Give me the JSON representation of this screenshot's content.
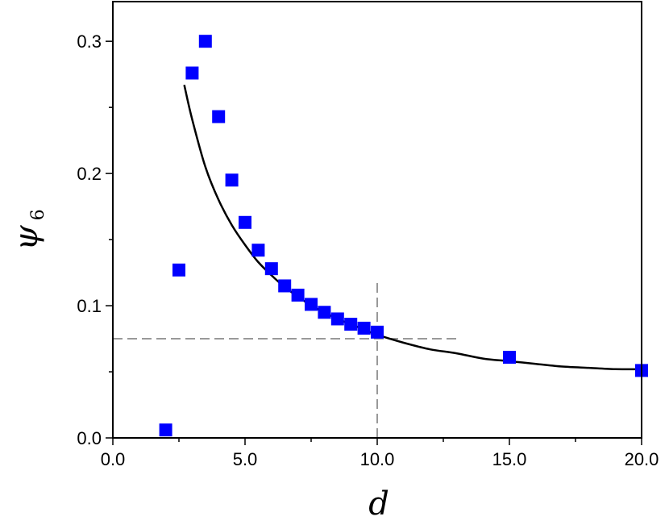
{
  "chart_data": {
    "type": "scatter",
    "xlabel": "d",
    "ylabel": "ψ",
    "ylabel_subscript": "6",
    "xlim": [
      0,
      20
    ],
    "ylim": [
      0,
      0.33
    ],
    "x_ticks": [
      0,
      5,
      10,
      15,
      20
    ],
    "x_tick_labels": [
      "0.0",
      "5.0",
      "10.0",
      "15.0",
      "20.0"
    ],
    "x_minor_ticks": [
      2.5,
      7.5,
      12.5,
      17.5
    ],
    "y_ticks": [
      0,
      0.1,
      0.2,
      0.3
    ],
    "y_tick_labels": [
      "0.0",
      "0.1",
      "0.2",
      "0.3"
    ],
    "y_minor_ticks": [
      0.05,
      0.15,
      0.25
    ],
    "grid": false,
    "series": [
      {
        "marker": "square",
        "color": "#0000ff",
        "points": [
          {
            "x": 2.0,
            "y": 0.006
          },
          {
            "x": 2.5,
            "y": 0.127
          },
          {
            "x": 3.0,
            "y": 0.276
          },
          {
            "x": 3.5,
            "y": 0.3
          },
          {
            "x": 4.0,
            "y": 0.243
          },
          {
            "x": 4.5,
            "y": 0.195
          },
          {
            "x": 5.0,
            "y": 0.163
          },
          {
            "x": 5.5,
            "y": 0.142
          },
          {
            "x": 6.0,
            "y": 0.128
          },
          {
            "x": 6.5,
            "y": 0.115
          },
          {
            "x": 7.0,
            "y": 0.108
          },
          {
            "x": 7.5,
            "y": 0.101
          },
          {
            "x": 8.0,
            "y": 0.095
          },
          {
            "x": 8.5,
            "y": 0.09
          },
          {
            "x": 9.0,
            "y": 0.086
          },
          {
            "x": 9.5,
            "y": 0.083
          },
          {
            "x": 10.0,
            "y": 0.08
          },
          {
            "x": 15.0,
            "y": 0.061
          },
          {
            "x": 20.0,
            "y": 0.051
          }
        ]
      },
      {
        "type": "line",
        "style": "solid",
        "color": "#000000",
        "points": [
          {
            "x": 2.7,
            "y": 0.267
          },
          {
            "x": 3.0,
            "y": 0.241
          },
          {
            "x": 3.5,
            "y": 0.205
          },
          {
            "x": 4.0,
            "y": 0.18
          },
          {
            "x": 4.5,
            "y": 0.161
          },
          {
            "x": 5.0,
            "y": 0.146
          },
          {
            "x": 5.5,
            "y": 0.133
          },
          {
            "x": 6.0,
            "y": 0.123
          },
          {
            "x": 6.5,
            "y": 0.114
          },
          {
            "x": 7.0,
            "y": 0.107
          },
          {
            "x": 7.5,
            "y": 0.1
          },
          {
            "x": 8.0,
            "y": 0.095
          },
          {
            "x": 8.5,
            "y": 0.09
          },
          {
            "x": 9.0,
            "y": 0.086
          },
          {
            "x": 9.5,
            "y": 0.082
          },
          {
            "x": 10.0,
            "y": 0.078
          },
          {
            "x": 11.0,
            "y": 0.072
          },
          {
            "x": 12.0,
            "y": 0.067
          },
          {
            "x": 13.0,
            "y": 0.064
          },
          {
            "x": 14.0,
            "y": 0.06
          },
          {
            "x": 15.0,
            "y": 0.058
          },
          {
            "x": 16.0,
            "y": 0.056
          },
          {
            "x": 17.0,
            "y": 0.054
          },
          {
            "x": 18.0,
            "y": 0.053
          },
          {
            "x": 19.0,
            "y": 0.052
          },
          {
            "x": 20.0,
            "y": 0.052
          }
        ]
      }
    ],
    "reference_lines": [
      {
        "orientation": "horizontal",
        "y": 0.075,
        "x_from": 0,
        "x_to": 13.0,
        "style": "dashed",
        "color": "#999999"
      },
      {
        "orientation": "vertical",
        "x": 10.0,
        "y_from": 0,
        "y_to": 0.12,
        "style": "dashed",
        "color": "#999999"
      }
    ]
  }
}
